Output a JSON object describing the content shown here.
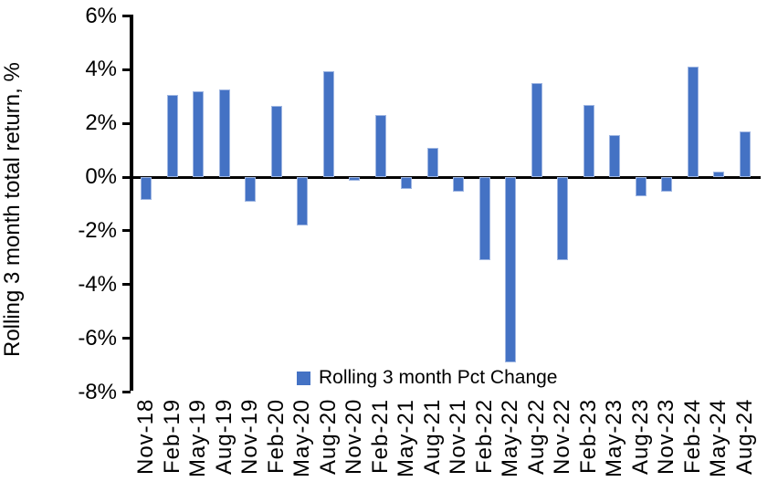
{
  "chart_data": {
    "type": "bar",
    "title": "",
    "xlabel": "",
    "ylabel": "Rolling 3 month total return, %",
    "legend": [
      "Rolling 3 month Pct Change"
    ],
    "legend_position": "bottom-center-inside",
    "grid": false,
    "ylim": [
      -8,
      6
    ],
    "ytick_step": 2,
    "ytick_labels": [
      "6%",
      "4%",
      "2%",
      "0%",
      "-2%",
      "-4%",
      "-6%",
      "-8%"
    ],
    "categories": [
      "Nov-18",
      "Feb-19",
      "May-19",
      "Aug-19",
      "Nov-19",
      "Feb-20",
      "May-20",
      "Aug-20",
      "Nov-20",
      "Feb-21",
      "May-21",
      "Aug-21",
      "Nov-21",
      "Feb-22",
      "May-22",
      "Aug-22",
      "Nov-22",
      "Feb-23",
      "May-23",
      "Aug-23",
      "Nov-23",
      "Feb-24",
      "May-24",
      "Aug-24"
    ],
    "values": [
      -0.85,
      3.05,
      3.2,
      3.25,
      -0.9,
      2.65,
      -1.8,
      3.95,
      -0.15,
      2.3,
      -0.45,
      1.1,
      -0.55,
      -3.1,
      -6.9,
      3.5,
      -3.1,
      2.7,
      1.55,
      -0.7,
      -0.55,
      4.1,
      0.2,
      1.7
    ],
    "colors": {
      "bar_fill": "#4472C4",
      "bar_border": "#9FB6E2",
      "axis": "#000000",
      "text": "#000000",
      "background": "#FFFFFF"
    }
  }
}
